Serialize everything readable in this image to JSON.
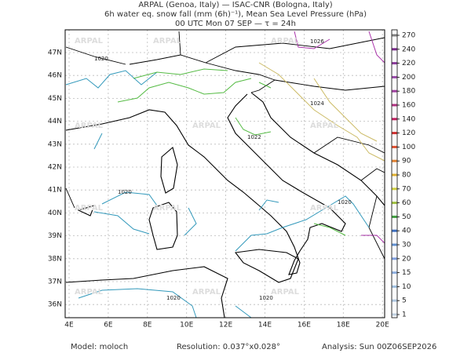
{
  "header": {
    "line1": "ARPAL (Genoa, Italy)  —  ISAC-CNR (Bologna, Italy)",
    "line2": "6h water eq. snow fall (mm (6h)⁻¹), Mean Sea Level Pressure (hPa)",
    "line3": "00 UTC Mon 07 SEP  —  τ = 24h"
  },
  "map": {
    "lon_labels": [
      "4E",
      "6E",
      "8E",
      "10E",
      "12E",
      "14E",
      "16E",
      "18E",
      "20E"
    ],
    "lat_labels": [
      "47N",
      "46N",
      "45N",
      "44N",
      "43N",
      "42N",
      "41N",
      "40N",
      "39N",
      "38N",
      "37N",
      "36N"
    ],
    "watermark": "ARPAL",
    "contour_labels": [
      "1020",
      "1020",
      "1024",
      "1026",
      "1022",
      "1020",
      "1020",
      "1020"
    ]
  },
  "colorbar": {
    "labels": [
      "270",
      "240",
      "220",
      "200",
      "180",
      "160",
      "140",
      "120",
      "100",
      "90",
      "80",
      "70",
      "60",
      "50",
      "40",
      "30",
      "20",
      "15",
      "10",
      "5",
      "1"
    ],
    "colors": [
      "#808080",
      "#7a2a8a",
      "#8a3a9a",
      "#9a4aaa",
      "#a040a0",
      "#b03080",
      "#c02060",
      "#d03030",
      "#e05030",
      "#e08030",
      "#e0b030",
      "#d0d040",
      "#a0c040",
      "#40a040",
      "#4070c0",
      "#6090d0",
      "#80a0e0",
      "#90b0e0",
      "#a0c0e0",
      "#b0c8e0",
      "#c0d0e0"
    ]
  },
  "footer": {
    "model": "Model: moloch",
    "resolution": "Resolution: 0.037°x0.028°",
    "analysis": "Analysis: Sun 00Z06SEP2026"
  }
}
